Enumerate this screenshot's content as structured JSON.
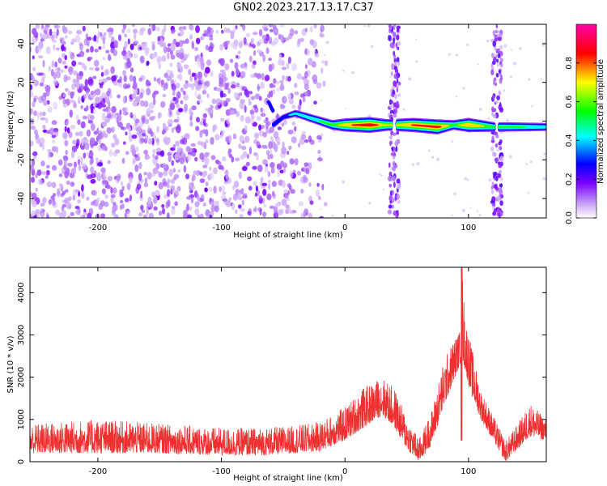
{
  "title": "GN02.2023.217.13.17.C37",
  "chart_data": [
    {
      "type": "heatmap",
      "xlabel": "Height of straight line (km)",
      "ylabel": "Frequency (Hz)",
      "xlim": [
        -255,
        163
      ],
      "ylim": [
        -50,
        50
      ],
      "xticks": [
        -200,
        -100,
        0,
        100
      ],
      "yticks": [
        -40,
        -20,
        0,
        20,
        40
      ],
      "grid": false,
      "colorbar": {
        "label": "Normalized spectral amplitude",
        "range": [
          0,
          1
        ],
        "ticks": [
          0.0,
          0.2,
          0.4,
          0.6,
          0.8
        ],
        "colors": [
          "#ffffff",
          "#c9a6f5",
          "#7a00ff",
          "#0000ff",
          "#00ffff",
          "#00ff00",
          "#ffff00",
          "#ff0000",
          "#ff00aa"
        ]
      },
      "features": {
        "noise_region": {
          "x": [
            -255,
            -25
          ],
          "level": "0.1-0.35"
        },
        "signal_track": [
          {
            "x": -62,
            "y": 10,
            "v": 0.3
          },
          {
            "x": -58,
            "y": 5,
            "v": 0.35
          },
          {
            "x": -62,
            "y": -4,
            "v": 0.4
          },
          {
            "x": -50,
            "y": 2,
            "v": 0.35
          },
          {
            "x": -40,
            "y": 4,
            "v": 0.45
          },
          {
            "x": -30,
            "y": 2,
            "v": 0.5
          },
          {
            "x": -20,
            "y": 0,
            "v": 0.55
          },
          {
            "x": -10,
            "y": -2,
            "v": 0.6
          },
          {
            "x": 0,
            "y": -2,
            "v": 0.8
          },
          {
            "x": 20,
            "y": -2,
            "v": 0.95
          },
          {
            "x": 35,
            "y": -2,
            "v": 0.7
          },
          {
            "x": 55,
            "y": -2,
            "v": 0.85
          },
          {
            "x": 75,
            "y": -3,
            "v": 0.9
          },
          {
            "x": 88,
            "y": -2,
            "v": 0.6
          },
          {
            "x": 100,
            "y": -2,
            "v": 0.85
          },
          {
            "x": 120,
            "y": -3,
            "v": 0.6
          },
          {
            "x": 145,
            "y": -3,
            "v": 0.55
          },
          {
            "x": 163,
            "y": -3,
            "v": 0.5
          }
        ],
        "vertical_bands_x": [
          40,
          123
        ]
      }
    },
    {
      "type": "line",
      "xlabel": "Height of straight line (km)",
      "ylabel": "SNR (10 * v/v)",
      "xlim": [
        -255,
        163
      ],
      "ylim": [
        0,
        4600
      ],
      "xticks": [
        -200,
        -100,
        0,
        100
      ],
      "yticks": [
        0,
        1000,
        2000,
        3000,
        4000
      ],
      "grid": false,
      "color": "#ee3030",
      "series": [
        {
          "envelope_x": [
            -255,
            -200,
            -150,
            -100,
            -70,
            -40,
            -20,
            0,
            15,
            30,
            40,
            50,
            60,
            70,
            80,
            88,
            93,
            95,
            97,
            102,
            110,
            120,
            130,
            140,
            150,
            163
          ],
          "envelope_base": [
            200,
            200,
            200,
            150,
            150,
            200,
            250,
            500,
            800,
            1100,
            800,
            300,
            0,
            400,
            1300,
            1900,
            2300,
            2400,
            2200,
            1600,
            1000,
            500,
            0,
            300,
            600,
            500
          ],
          "envelope_top": [
            900,
            1000,
            900,
            800,
            800,
            850,
            950,
            1300,
            1750,
            2000,
            1750,
            1050,
            550,
            1200,
            2400,
            2900,
            3100,
            4600,
            3500,
            2800,
            1700,
            1100,
            500,
            900,
            1400,
            1000
          ]
        }
      ]
    }
  ]
}
